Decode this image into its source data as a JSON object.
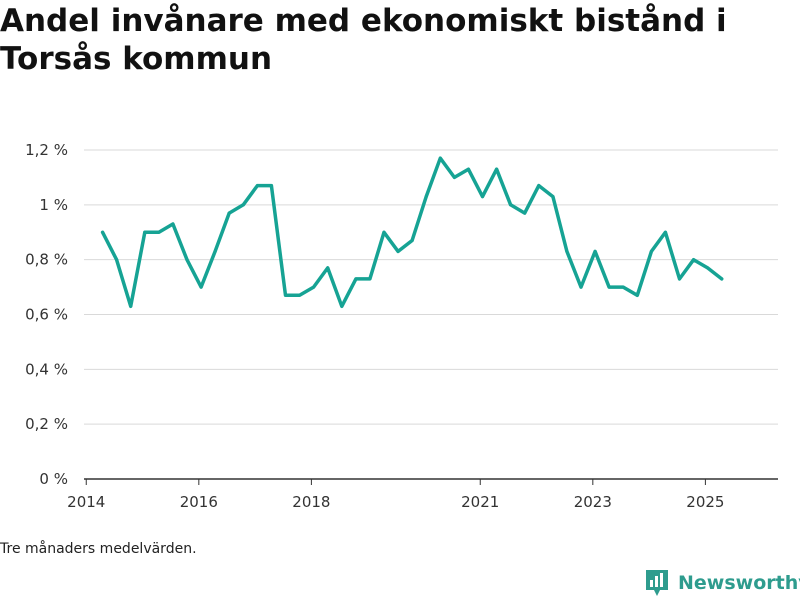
{
  "chart_data": {
    "type": "line",
    "title": "Andel invånare med ekonomiskt bistånd i Torsås kommun",
    "note": "Tre månaders medelvärden.",
    "ylim": [
      0,
      1.2
    ],
    "y_ticks": [
      {
        "value": 0,
        "label": "0 %"
      },
      {
        "value": 0.2,
        "label": "0,2 %"
      },
      {
        "value": 0.4,
        "label": "0,4 %"
      },
      {
        "value": 0.6,
        "label": "0,6 %"
      },
      {
        "value": 0.8,
        "label": "0,8 %"
      },
      {
        "value": 1.0,
        "label": "1 %"
      },
      {
        "value": 1.2,
        "label": "1,2 %"
      }
    ],
    "xlim": [
      2013.96,
      2026.29
    ],
    "x_ticks": [
      {
        "value": 2014,
        "label": "2014"
      },
      {
        "value": 2016,
        "label": "2016"
      },
      {
        "value": 2018,
        "label": "2018"
      },
      {
        "value": 2021,
        "label": "2021"
      },
      {
        "value": 2023,
        "label": "2023"
      },
      {
        "value": 2025,
        "label": "2025"
      }
    ],
    "grid": true,
    "line_color": "#16a394",
    "series": [
      {
        "x": [
          2014.29,
          2014.54,
          2014.79,
          2015.04,
          2015.29,
          2015.54,
          2015.79,
          2016.04,
          2016.29,
          2016.54,
          2016.79,
          2017.04,
          2017.29,
          2017.54,
          2017.79,
          2018.04,
          2018.29,
          2018.54,
          2018.79,
          2019.04,
          2019.29,
          2019.54,
          2019.79,
          2020.04,
          2020.29,
          2020.54,
          2020.79,
          2021.04,
          2021.29,
          2021.54,
          2021.79,
          2022.04,
          2022.29,
          2022.54,
          2022.79,
          2023.04,
          2023.29,
          2023.54,
          2023.79,
          2024.04,
          2024.29,
          2024.54,
          2024.79,
          2025.04,
          2025.29
        ],
        "values": [
          0.9,
          0.8,
          0.63,
          0.9,
          0.9,
          0.93,
          0.8,
          0.7,
          0.83,
          0.97,
          1.0,
          1.07,
          1.07,
          0.67,
          0.67,
          0.7,
          0.77,
          0.63,
          0.73,
          0.73,
          0.9,
          0.83,
          0.87,
          1.03,
          1.17,
          1.1,
          1.13,
          1.03,
          1.13,
          1.0,
          0.97,
          1.07,
          1.03,
          0.83,
          0.7,
          0.83,
          0.7,
          0.7,
          0.67,
          0.83,
          0.9,
          0.73,
          0.8,
          0.77,
          0.73
        ]
      }
    ]
  },
  "brand": {
    "name": "Newsworthy",
    "icon": "newsworthy-logo-icon",
    "color": "#2e9c8e"
  }
}
